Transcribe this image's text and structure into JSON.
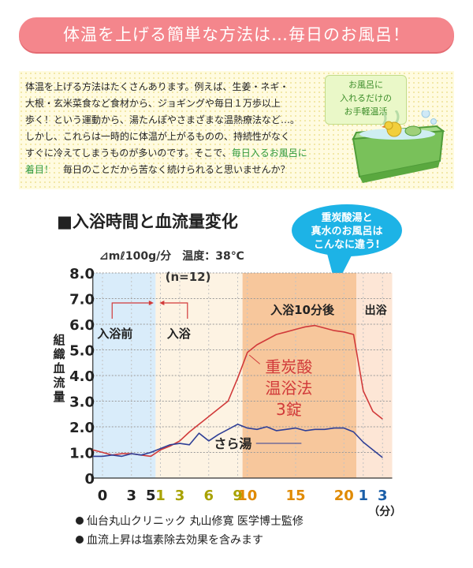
{
  "banner": "体温を上げる簡単な方法は…毎日のお風呂！",
  "intro": {
    "lines": [
      "体温を上げる方法はたくさんあります。例えば、生姜・ネギ・",
      "大根・玄米菜食など食材から、ジョギングや毎日１万歩以上",
      "歩く！という運動から、湯たんぽやさまざまな温熱療法など…。",
      "しかし、これらは一時的に体温が上がるものの、持続性がなく",
      "すぐに冷えてしまうものが多いのです。そこで、毎日入るお風呂に",
      "着目！　毎日のことだから苦なく続けられると思いませんか？"
    ],
    "highlight_line5": "毎日入るお風呂に",
    "highlight_line6": "着目！",
    "bubble": [
      "お風呂に",
      "入れるだけの",
      "お手軽温活"
    ]
  },
  "chart_heading": "■入浴時間と血流量変化",
  "callout": [
    "重炭酸湯と",
    "真水のお風呂は",
    "こんなに違う!"
  ],
  "unit_line": "⊿mℓ100g/分　温度：38℃",
  "footnotes": [
    "仙台丸山クリニック 丸山修寛 医学博士監修",
    "血流上昇は塩素除去効果を含みます"
  ],
  "colors": {
    "banner": "#f4868c",
    "carbonate": "#d13a3a",
    "water": "#2f3f96",
    "accent": "#1db3e6"
  },
  "chart_data": {
    "type": "line",
    "ylabel": "組織血流量",
    "xunit": "（分）",
    "n_label": "(n=12)",
    "ylim": [
      0,
      8
    ],
    "yticks": [
      {
        "value": 0,
        "label": "0"
      },
      {
        "value": 1,
        "label": "1.0"
      },
      {
        "value": 2,
        "label": "2.0"
      },
      {
        "value": 3,
        "label": "3.0"
      },
      {
        "value": 4,
        "label": "4.0"
      },
      {
        "value": 5,
        "label": "5.0"
      },
      {
        "value": 6,
        "label": "6.0"
      },
      {
        "value": 7,
        "label": "7.0"
      },
      {
        "value": 8,
        "label": "8.0"
      }
    ],
    "xticks": [
      {
        "x": 0,
        "label": "0",
        "color": "#222222"
      },
      {
        "x": 3,
        "label": "3",
        "color": "#222222"
      },
      {
        "x": 5,
        "label": "5",
        "color": "#222222"
      },
      {
        "x": 6,
        "label": "1",
        "color": "#a8a200"
      },
      {
        "x": 8,
        "label": "3",
        "color": "#a8a200"
      },
      {
        "x": 11,
        "label": "6",
        "color": "#a8a200"
      },
      {
        "x": 14,
        "label": "9",
        "color": "#a8a200"
      },
      {
        "x": 15,
        "label": "10",
        "color": "#e08a00"
      },
      {
        "x": 20,
        "label": "15",
        "color": "#e08a00"
      },
      {
        "x": 25,
        "label": "20",
        "color": "#e08a00"
      },
      {
        "x": 27,
        "label": "1",
        "color": "#1a5ea8"
      },
      {
        "x": 29,
        "label": "3",
        "color": "#1a5ea8"
      }
    ],
    "phases": [
      {
        "label": "入浴前",
        "from": -1,
        "to": 5.5,
        "color": "#d9ecfa"
      },
      {
        "label": "入浴",
        "from": 5.5,
        "to": 14.5,
        "color": "#fdf3e3"
      },
      {
        "label": "入浴10分後",
        "from": 14.5,
        "to": 26.3,
        "color": "#f7c79c"
      },
      {
        "label": "出浴",
        "from": 26.3,
        "to": 30,
        "color": "#fde6d6"
      }
    ],
    "xlim": [
      -1,
      30
    ],
    "series": [
      {
        "name": "重炭酸\n温浴法\n3錠",
        "color": "#d13a3a",
        "x": [
          -1,
          0,
          1,
          2,
          3,
          4,
          5,
          6,
          7,
          8,
          9,
          10,
          11,
          12,
          13,
          14,
          15,
          16,
          17,
          18,
          19,
          20,
          21,
          22,
          23,
          24,
          25,
          26,
          27,
          28,
          29
        ],
        "y": [
          1.1,
          1.0,
          0.9,
          0.95,
          0.95,
          0.9,
          0.85,
          1.1,
          1.25,
          1.45,
          1.8,
          2.1,
          2.4,
          2.7,
          3.0,
          3.9,
          4.9,
          5.2,
          5.4,
          5.6,
          5.7,
          5.8,
          5.9,
          5.95,
          5.85,
          5.75,
          5.7,
          5.6,
          3.4,
          2.6,
          2.3
        ]
      },
      {
        "name": "さら湯",
        "color": "#2f3f96",
        "x": [
          -1,
          0,
          1,
          2,
          3,
          4,
          5,
          6,
          7,
          8,
          9,
          10,
          11,
          12,
          13,
          14,
          15,
          16,
          17,
          18,
          19,
          20,
          21,
          22,
          23,
          24,
          25,
          26,
          27,
          28,
          29
        ],
        "y": [
          0.85,
          0.85,
          0.9,
          0.85,
          0.95,
          0.9,
          1.0,
          1.15,
          1.3,
          1.35,
          1.3,
          1.75,
          1.45,
          1.7,
          1.9,
          2.1,
          1.95,
          1.9,
          2.0,
          1.85,
          1.9,
          1.95,
          1.85,
          1.9,
          1.9,
          1.95,
          1.95,
          1.8,
          1.4,
          1.1,
          0.8
        ]
      }
    ],
    "annotations": {
      "before": "入浴前",
      "during": "入浴",
      "after10": "入浴10分後",
      "exit": "出浴"
    }
  }
}
